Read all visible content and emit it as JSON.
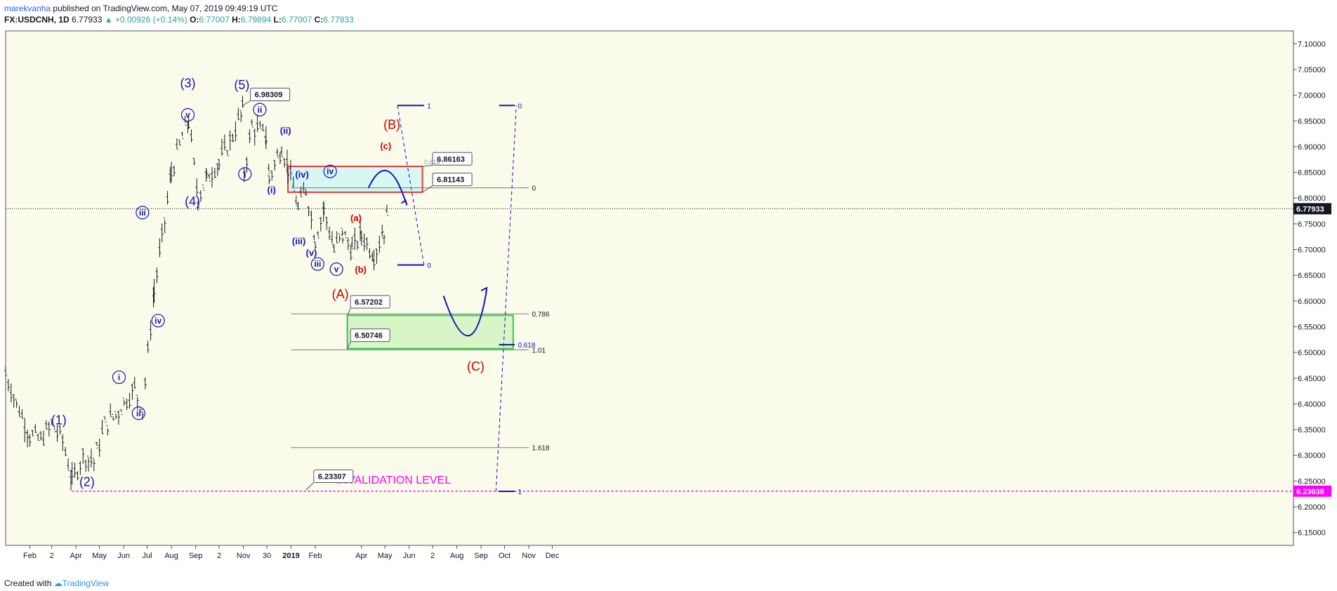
{
  "header": {
    "author": "marekvanha",
    "published_text": "published on TradingView.com, May 07, 2019 09:49:19 UTC",
    "symbol": "FX:USDCNH, 1D",
    "last": "6.77933",
    "change": "▲ +0.00926 (+0.14%)",
    "o_label": "O:",
    "o_value": "6.77007",
    "h_label": "H:",
    "h_value": "6.79894",
    "l_label": "L:",
    "l_value": "6.77007",
    "c_label": "C:",
    "c_value": "6.77933"
  },
  "footer": {
    "created_with": "Created with",
    "brand": "TradingView"
  },
  "chart_data": {
    "type": "line",
    "title": "FX:USDCNH, 1D",
    "ylim": [
      6.125,
      7.125
    ],
    "y_ticks": [
      "6.15000",
      "6.20000",
      "6.25000",
      "6.30000",
      "6.35000",
      "6.40000",
      "6.45000",
      "6.50000",
      "6.55000",
      "6.60000",
      "6.65000",
      "6.70000",
      "6.75000",
      "6.80000",
      "6.85000",
      "6.90000",
      "6.95000",
      "7.00000",
      "7.05000",
      "7.10000"
    ],
    "x_tick_labels": [
      "Feb",
      "2",
      "Apr",
      "May",
      "Jun",
      "Jul",
      "Aug",
      "Sep",
      "2",
      "Nov",
      "30",
      "2019",
      "Feb",
      "Apr",
      "May",
      "Jun",
      "2",
      "Aug",
      "Sep",
      "Oct",
      "Nov",
      "Dec"
    ],
    "price_path": [
      [
        "2018-01-01",
        6.46
      ],
      [
        "2018-01-15",
        6.4
      ],
      [
        "2018-02-01",
        6.34
      ],
      [
        "2018-02-15",
        6.33
      ],
      [
        "2018-03-01",
        6.36
      ],
      [
        "2018-03-15",
        6.33
      ],
      [
        "2018-03-27",
        6.25
      ],
      [
        "2018-04-10",
        6.3
      ],
      [
        "2018-04-24",
        6.29
      ],
      [
        "2018-05-08",
        6.36
      ],
      [
        "2018-05-22",
        6.38
      ],
      [
        "2018-06-05",
        6.41
      ],
      [
        "2018-06-15",
        6.43
      ],
      [
        "2018-06-25",
        6.39
      ],
      [
        "2018-07-10",
        6.62
      ],
      [
        "2018-07-20",
        6.72
      ],
      [
        "2018-08-01",
        6.85
      ],
      [
        "2018-08-15",
        6.92
      ],
      [
        "2018-08-23",
        6.95
      ],
      [
        "2018-09-04",
        6.8
      ],
      [
        "2018-09-15",
        6.84
      ],
      [
        "2018-10-01",
        6.87
      ],
      [
        "2018-10-15",
        6.91
      ],
      [
        "2018-10-31",
        6.97
      ],
      [
        "2018-11-02",
        6.85
      ],
      [
        "2018-11-12",
        6.94
      ],
      [
        "2018-11-30",
        6.92
      ],
      [
        "2018-12-04",
        6.84
      ],
      [
        "2018-12-20",
        6.9
      ],
      [
        "2018-12-28",
        6.86
      ],
      [
        "2019-01-10",
        6.78
      ],
      [
        "2019-01-20",
        6.82
      ],
      [
        "2019-02-01",
        6.72
      ],
      [
        "2019-02-12",
        6.78
      ],
      [
        "2019-02-25",
        6.7
      ],
      [
        "2019-03-08",
        6.73
      ],
      [
        "2019-03-20",
        6.7
      ],
      [
        "2019-04-01",
        6.73
      ],
      [
        "2019-04-17",
        6.69
      ],
      [
        "2019-04-30",
        6.74
      ],
      [
        "2019-05-07",
        6.78
      ]
    ],
    "last_price": "6.77933",
    "invalidation_price": "6.23038",
    "callouts": [
      "6.98309",
      "6.86163",
      "6.81143",
      "6.57202",
      "6.50746",
      "6.23307"
    ],
    "callout_ref_ratio": "0.618",
    "fib_upper": [
      {
        "ratio": "1",
        "value": 6.98
      },
      {
        "ratio": "0",
        "value": 6.67
      }
    ],
    "fib_lower": [
      {
        "ratio": "0",
        "value": 6.82
      },
      {
        "ratio": "0.786",
        "value": 6.575
      },
      {
        "ratio": "1.01",
        "value": 6.505
      },
      {
        "ratio": "1.618",
        "value": 6.315
      }
    ],
    "fib_right": [
      {
        "ratio": "0",
        "value": 6.98
      },
      {
        "ratio": "0.618",
        "value": 6.515
      },
      {
        "ratio": "1",
        "value": 6.23
      }
    ],
    "resistance_zone": [
      6.81143,
      6.86163
    ],
    "support_zone": [
      6.50746,
      6.57202
    ],
    "invalidation_label": "INVALIDATION LEVEL",
    "colors": {
      "wave_blue": "#1414b4",
      "wave_red": "#cc0000",
      "invalidation": "#ff00ff",
      "resistance_border": "#e53935",
      "resistance_fill": "#d6f7f2",
      "support_border": "#2ecc40",
      "support_fill": "#d8f5c8",
      "bars": "#131722",
      "grid_bg": "#fafbea"
    },
    "wave_labels": [
      {
        "text": "(1)",
        "date": "2018-03-10",
        "price": 6.36,
        "color": "blue"
      },
      {
        "text": "(2)",
        "date": "2018-04-15",
        "price": 6.24,
        "color": "blue"
      },
      {
        "text": "(3)",
        "date": "2018-08-22",
        "price": 7.015,
        "color": "blue"
      },
      {
        "text": "(4)",
        "date": "2018-08-28",
        "price": 6.785,
        "color": "blue"
      },
      {
        "text": "(5)",
        "date": "2018-10-30",
        "price": 7.012,
        "color": "blue"
      },
      {
        "text": "i",
        "date": "2018-05-26",
        "price": 6.445,
        "color": "blue",
        "circle": true
      },
      {
        "text": "ii",
        "date": "2018-06-20",
        "price": 6.375,
        "color": "blue",
        "circle": true
      },
      {
        "text": "iii",
        "date": "2018-06-25",
        "price": 6.765,
        "color": "blue",
        "circle": true
      },
      {
        "text": "iv",
        "date": "2018-07-15",
        "price": 6.555,
        "color": "blue",
        "circle": true
      },
      {
        "text": "v",
        "date": "2018-08-22",
        "price": 6.955,
        "color": "blue",
        "circle": true
      },
      {
        "text": "i",
        "date": "2018-11-03",
        "price": 6.84,
        "color": "blue",
        "circle": true
      },
      {
        "text": "ii",
        "date": "2018-11-22",
        "price": 6.965,
        "color": "blue",
        "circle": true
      },
      {
        "text": "(i)",
        "date": "2018-12-07",
        "price": 6.81,
        "color": "blue"
      },
      {
        "text": "(ii)",
        "date": "2018-12-25",
        "price": 6.925,
        "color": "blue"
      },
      {
        "text": "(iii)",
        "date": "2019-01-11",
        "price": 6.71,
        "color": "blue"
      },
      {
        "text": "(iv)",
        "date": "2019-01-15",
        "price": 6.84,
        "color": "blue"
      },
      {
        "text": "(v)",
        "date": "2019-01-27",
        "price": 6.688,
        "color": "blue"
      },
      {
        "text": "iii",
        "date": "2019-02-04",
        "price": 6.665,
        "color": "blue",
        "circle": true
      },
      {
        "text": "iv",
        "date": "2019-02-20",
        "price": 6.845,
        "color": "blue",
        "circle": true
      },
      {
        "text": "v",
        "date": "2019-02-28",
        "price": 6.655,
        "color": "blue",
        "circle": true
      },
      {
        "text": "(a)",
        "date": "2019-03-25",
        "price": 6.755,
        "color": "red"
      },
      {
        "text": "(b)",
        "date": "2019-03-31",
        "price": 6.655,
        "color": "red"
      },
      {
        "text": "(c)",
        "date": "2019-05-02",
        "price": 6.895,
        "color": "red"
      },
      {
        "text": "(A)",
        "date": "2019-03-05",
        "price": 6.605,
        "color": "red"
      },
      {
        "text": "(B)",
        "date": "2019-05-10",
        "price": 6.935,
        "color": "red"
      },
      {
        "text": "(C)",
        "date": "2019-08-25",
        "price": 6.465,
        "color": "red"
      }
    ]
  }
}
